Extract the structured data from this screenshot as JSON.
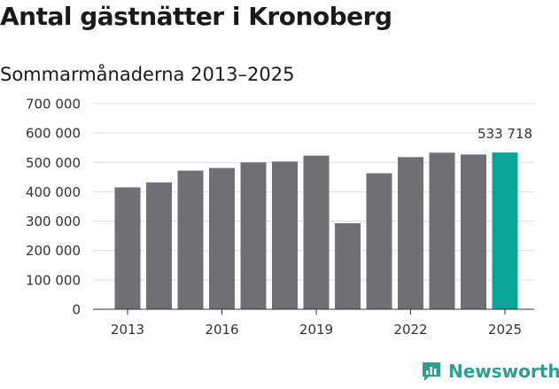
{
  "title": "Antal gästnätter i Kronoberg",
  "subtitle": "Sommarmånaderna 2013–2025",
  "brand": "Newsworthy",
  "colors": {
    "bar": "#707074",
    "highlight": "#0aa398",
    "grid": "#dddddd",
    "axis": "#333333",
    "brand": "#2e9d8f"
  },
  "chart_data": {
    "type": "bar",
    "title": "Antal gästnätter i Kronoberg",
    "subtitle": "Sommarmånaderna 2013–2025",
    "xlabel": "",
    "ylabel": "",
    "categories": [
      "2013",
      "2014",
      "2015",
      "2016",
      "2017",
      "2018",
      "2019",
      "2020",
      "2021",
      "2022",
      "2023",
      "2024",
      "2025"
    ],
    "values": [
      415000,
      432000,
      472000,
      481000,
      500000,
      503000,
      523000,
      293000,
      463000,
      518000,
      533000,
      527000,
      533718
    ],
    "highlight_index": 12,
    "ylim": [
      0,
      700000
    ],
    "yticks": [
      0,
      100000,
      200000,
      300000,
      400000,
      500000,
      600000,
      700000
    ],
    "ytick_labels": [
      "0",
      "100 000",
      "200 000",
      "300 000",
      "400 000",
      "500 000",
      "600 000",
      "700 000"
    ],
    "xtick_labels": [
      "2013",
      "2016",
      "2019",
      "2022",
      "2025"
    ],
    "data_labels": [
      {
        "index": 12,
        "text": "533 718"
      }
    ],
    "grid": true
  }
}
